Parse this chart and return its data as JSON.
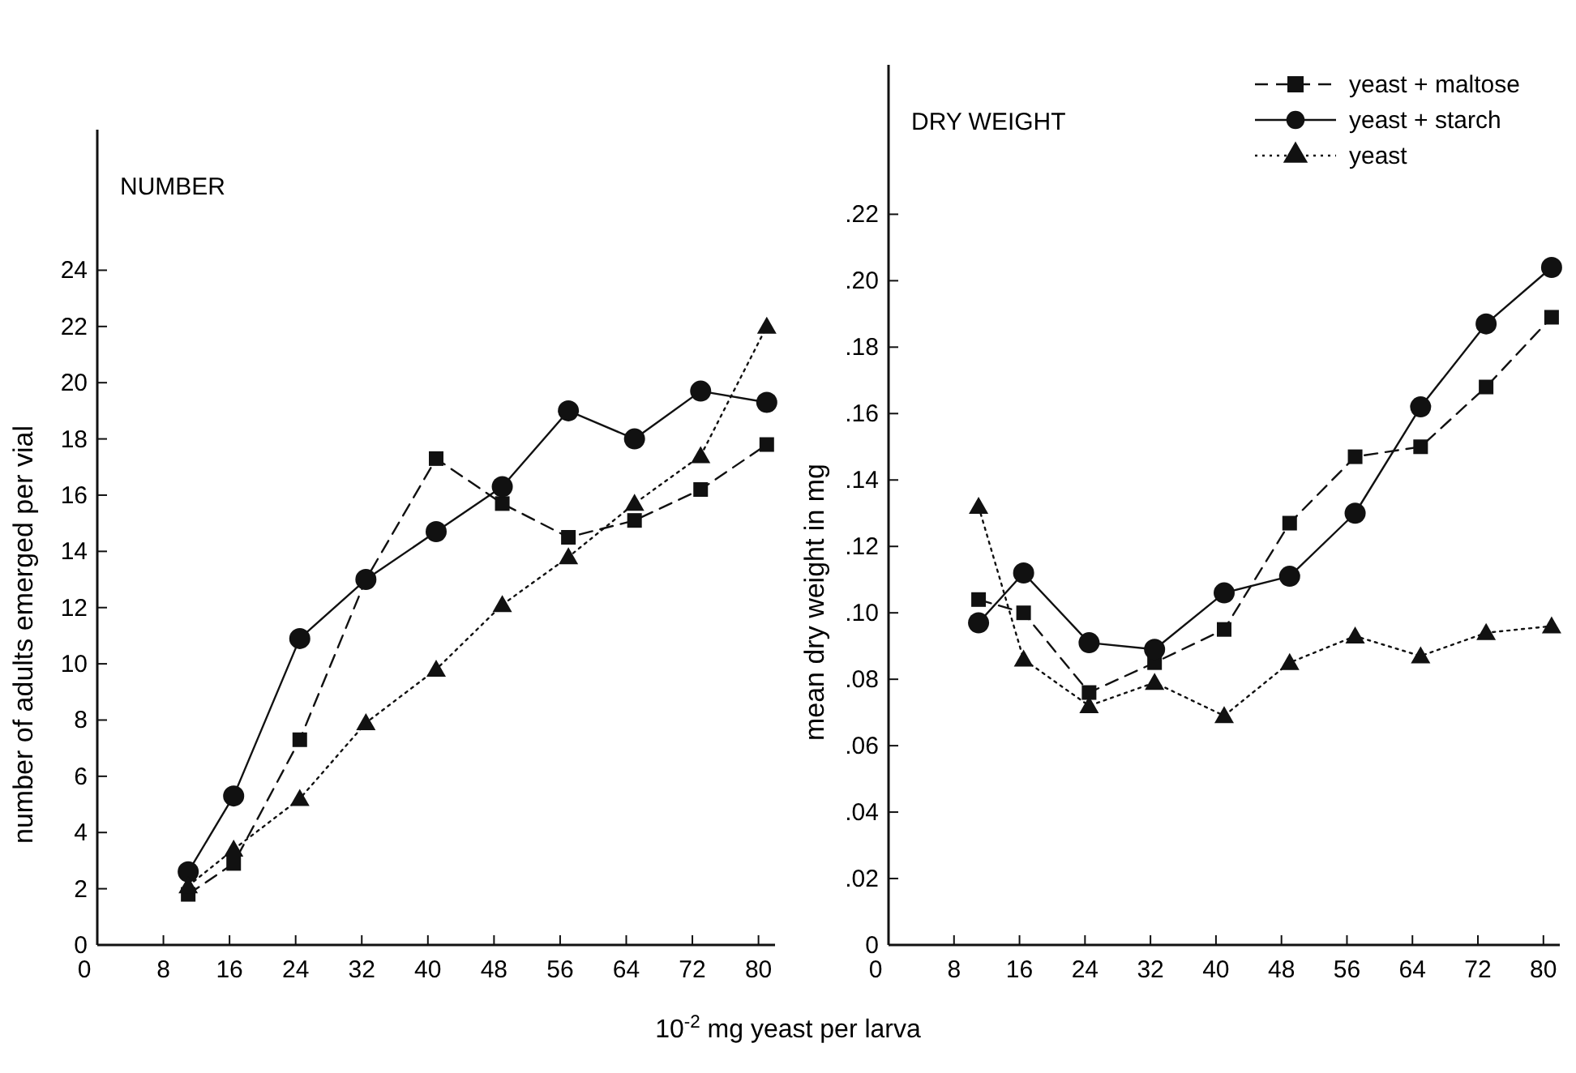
{
  "chart_data": [
    {
      "type": "line",
      "title": "NUMBER",
      "xlabel": "10$^{-2}$ mg  yeast per larva",
      "ylabel": "number of adults emerged  per vial",
      "x": [
        11,
        16.5,
        24.5,
        32.5,
        41,
        49,
        57,
        65,
        73,
        81
      ],
      "xlim": [
        0,
        82
      ],
      "xticks": [
        0,
        8,
        16,
        24,
        32,
        40,
        48,
        56,
        64,
        72,
        80
      ],
      "ylim": [
        0,
        29
      ],
      "yticks": [
        0,
        2,
        4,
        6,
        8,
        10,
        12,
        14,
        16,
        18,
        20,
        22,
        24
      ],
      "grid": false,
      "legend": false,
      "series": [
        {
          "color": "#111111",
          "marker": "square",
          "line_style": "dashed",
          "values": [
            1.8,
            2.9,
            7.3,
            13.0,
            17.3,
            15.7,
            14.5,
            15.1,
            16.2,
            17.8
          ]
        },
        {
          "color": "#111111",
          "marker": "circle",
          "line_style": "solid",
          "values": [
            2.6,
            5.3,
            10.9,
            13.0,
            14.7,
            16.3,
            19.0,
            18.0,
            19.7,
            19.3
          ]
        },
        {
          "color": "#111111",
          "marker": "triangle",
          "line_style": "dotted",
          "values": [
            2.1,
            3.4,
            5.2,
            7.9,
            9.8,
            12.1,
            13.8,
            15.7,
            17.4,
            22.0
          ]
        }
      ]
    },
    {
      "type": "line",
      "title": "DRY WEIGHT",
      "ylabel": "mean dry weight in mg",
      "x": [
        11,
        16.5,
        24.5,
        32.5,
        41,
        49,
        57,
        65,
        73,
        81
      ],
      "xlim": [
        0,
        82
      ],
      "xticks": [
        0,
        8,
        16,
        24,
        32,
        40,
        48,
        56,
        64,
        72,
        80
      ],
      "ylim": [
        0,
        0.265
      ],
      "yticks": [
        0,
        {
          "value": 0.02,
          "label": ".02"
        },
        {
          "value": 0.04,
          "label": ".04"
        },
        {
          "value": 0.06,
          "label": ".06"
        },
        {
          "value": 0.08,
          "label": ".08"
        },
        {
          "value": 0.1,
          "label": ".10"
        },
        {
          "value": 0.12,
          "label": ".12"
        },
        {
          "value": 0.14,
          "label": ".14"
        },
        {
          "value": 0.16,
          "label": ".16"
        },
        {
          "value": 0.18,
          "label": ".18"
        },
        {
          "value": 0.2,
          "label": ".20"
        },
        {
          "value": 0.22,
          "label": ".22"
        }
      ],
      "grid": false,
      "legend": "top right",
      "series": [
        {
          "name": "yeast + maltose",
          "color": "#111111",
          "marker": "square",
          "line_style": "dashed",
          "values": [
            0.104,
            0.1,
            0.076,
            0.085,
            0.095,
            0.127,
            0.147,
            0.15,
            0.168,
            0.189
          ]
        },
        {
          "name": "yeast + starch",
          "color": "#111111",
          "marker": "circle",
          "line_style": "solid",
          "values": [
            0.097,
            0.112,
            0.091,
            0.089,
            0.106,
            0.111,
            0.13,
            0.162,
            0.187,
            0.204
          ]
        },
        {
          "name": "yeast",
          "color": "#111111",
          "marker": "triangle",
          "line_style": "dotted",
          "values": [
            0.132,
            0.086,
            0.072,
            0.079,
            0.069,
            0.085,
            0.093,
            0.087,
            0.094,
            0.096
          ]
        }
      ]
    }
  ]
}
